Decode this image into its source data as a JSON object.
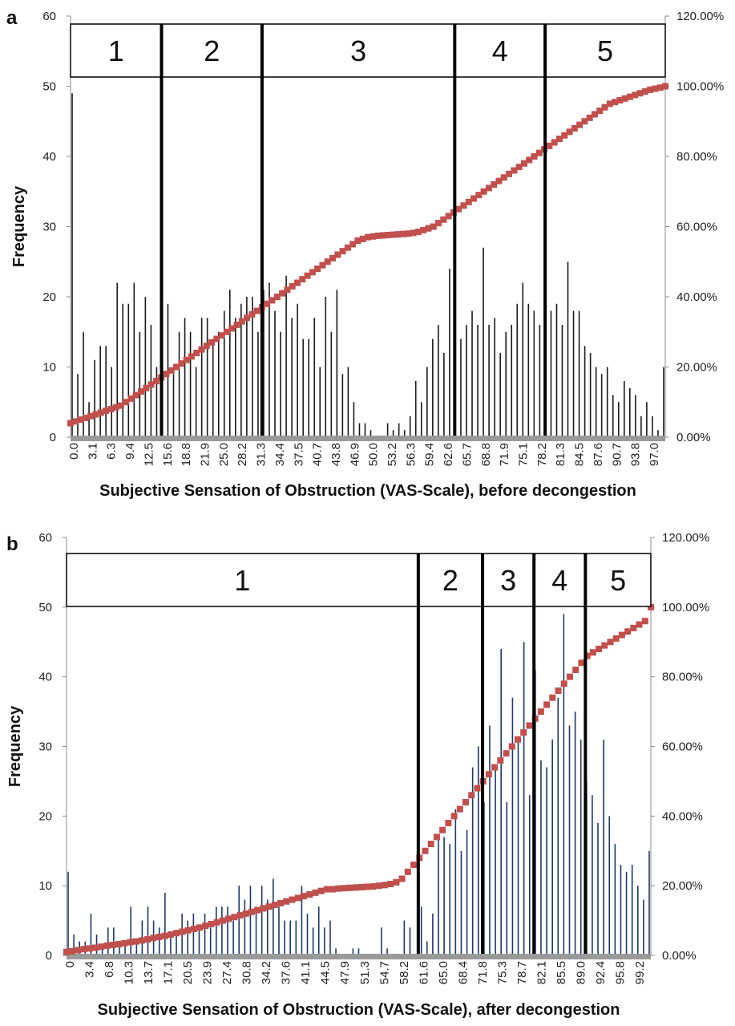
{
  "chart_data": [
    {
      "panel": "a",
      "type": "bar",
      "ylabel": "Frequency",
      "xlabel": "Subjective Sensation of Obstruction  (VAS-Scale), before decongestion",
      "ylim": [
        0,
        60
      ],
      "y_ticks": [
        "0",
        "10",
        "20",
        "30",
        "40",
        "50",
        "60"
      ],
      "y2lim": [
        0,
        1.2
      ],
      "y2_ticks": [
        "0.00%",
        "20.00%",
        "40.00%",
        "60.00%",
        "80.00%",
        "100.00%",
        "120.00%"
      ],
      "x_tick_labels": [
        "0.0",
        "3.1",
        "6.3",
        "9.4",
        "12.5",
        "15.6",
        "18.8",
        "21.9",
        "25.0",
        "28.2",
        "31.3",
        "34.4",
        "37.5",
        "40.7",
        "43.8",
        "46.9",
        "50.0",
        "53.2",
        "56.3",
        "59.4",
        "62.6",
        "65.7",
        "68.8",
        "71.9",
        "75.1",
        "78.2",
        "81.3",
        "84.5",
        "87.6",
        "90.7",
        "93.8",
        "97.0"
      ],
      "frequency_values": [
        49,
        9,
        15,
        5,
        11,
        13,
        13,
        10,
        22,
        19,
        19,
        22,
        15,
        20,
        16,
        10,
        21,
        19,
        9,
        15,
        17,
        15,
        10,
        17,
        17,
        14,
        15,
        18,
        21,
        17,
        19,
        20,
        20,
        15,
        21,
        22,
        18,
        15,
        23,
        17,
        19,
        14,
        14,
        17,
        10,
        20,
        15,
        21,
        9,
        10,
        5,
        2,
        2,
        1,
        0,
        0,
        2,
        1,
        2,
        1,
        3,
        8,
        5,
        10,
        14,
        16,
        12,
        24,
        22,
        14,
        16,
        18,
        16,
        27,
        16,
        17,
        12,
        15,
        16,
        19,
        22,
        19,
        18,
        16,
        18,
        18,
        19,
        16,
        25,
        18,
        18,
        13,
        12,
        10,
        9,
        10,
        6,
        5,
        8,
        7,
        6,
        3,
        5,
        3,
        1,
        10
      ],
      "cumulative_values": [
        0.04,
        0.045,
        0.05,
        0.055,
        0.06,
        0.065,
        0.07,
        0.075,
        0.08,
        0.085,
        0.09,
        0.1,
        0.11,
        0.12,
        0.13,
        0.14,
        0.15,
        0.16,
        0.17,
        0.18,
        0.19,
        0.2,
        0.21,
        0.22,
        0.23,
        0.24,
        0.25,
        0.26,
        0.27,
        0.28,
        0.29,
        0.3,
        0.31,
        0.32,
        0.33,
        0.34,
        0.35,
        0.36,
        0.37,
        0.38,
        0.39,
        0.4,
        0.41,
        0.42,
        0.43,
        0.44,
        0.45,
        0.46,
        0.47,
        0.48,
        0.49,
        0.5,
        0.51,
        0.52,
        0.53,
        0.54,
        0.55,
        0.56,
        0.565,
        0.57,
        0.572,
        0.574,
        0.575,
        0.576,
        0.577,
        0.578,
        0.579,
        0.58,
        0.582,
        0.585,
        0.59,
        0.595,
        0.6,
        0.61,
        0.62,
        0.63,
        0.64,
        0.65,
        0.66,
        0.67,
        0.68,
        0.69,
        0.7,
        0.71,
        0.72,
        0.73,
        0.74,
        0.75,
        0.76,
        0.77,
        0.78,
        0.79,
        0.8,
        0.81,
        0.82,
        0.83,
        0.84,
        0.85,
        0.86,
        0.87,
        0.88,
        0.89,
        0.9,
        0.91,
        0.92,
        0.93,
        0.94,
        0.95,
        0.955,
        0.96,
        0.965,
        0.97,
        0.975,
        0.98,
        0.985,
        0.99,
        0.993,
        0.996,
        1.0
      ],
      "classes": [
        {
          "label": "1",
          "from": 0,
          "to": 15.3
        },
        {
          "label": "2",
          "from": 15.3,
          "to": 32.2
        },
        {
          "label": "3",
          "from": 32.2,
          "to": 64.6
        },
        {
          "label": "4",
          "from": 64.6,
          "to": 79.8
        },
        {
          "label": "5",
          "from": 79.8,
          "to": 100
        }
      ]
    },
    {
      "panel": "b",
      "type": "bar",
      "ylabel": "Frequency",
      "xlabel": "Subjective Sensation of Obstruction  (VAS-Scale), after decongestion",
      "ylim": [
        0,
        60
      ],
      "y_ticks": [
        "0",
        "10",
        "20",
        "30",
        "40",
        "50",
        "60"
      ],
      "y2lim": [
        0,
        1.2
      ],
      "y2_ticks": [
        "0.00%",
        "20.00%",
        "40.00%",
        "60.00%",
        "80.00%",
        "100.00%",
        "120.00%"
      ],
      "x_tick_labels": [
        "0",
        "3.4",
        "6.8",
        "10.3",
        "13.7",
        "17.1",
        "20.5",
        "23.9",
        "27.4",
        "30.8",
        "34.2",
        "37.6",
        "41.1",
        "44.5",
        "47.9",
        "51.3",
        "54.7",
        "58.2",
        "61.6",
        "65.0",
        "68.4",
        "71.8",
        "75.3",
        "78.7",
        "82.1",
        "85.5",
        "89.0",
        "92.4",
        "95.8",
        "99.2"
      ],
      "frequency_values": [
        12,
        3,
        2,
        2,
        6,
        3,
        1,
        4,
        4,
        2,
        2,
        7,
        2,
        5,
        7,
        5,
        4,
        9,
        3,
        3,
        6,
        5,
        6,
        4,
        6,
        4,
        7,
        7,
        7,
        5,
        10,
        8,
        10,
        7,
        10,
        8,
        11,
        7,
        5,
        5,
        5,
        10,
        6,
        4,
        7,
        4,
        5,
        1,
        0,
        0,
        1,
        1,
        0,
        0,
        0,
        4,
        1,
        0,
        0,
        5,
        4,
        0,
        7,
        2,
        6,
        17,
        17,
        16,
        21,
        15,
        18,
        27,
        30,
        22,
        33,
        27,
        44,
        22,
        37,
        31,
        45,
        23,
        41,
        28,
        27,
        31,
        37,
        49,
        33,
        35,
        31,
        25,
        23,
        19,
        31,
        20,
        16,
        13,
        12,
        13,
        10,
        8,
        15
      ],
      "cumulative_values": [
        0.01,
        0.012,
        0.015,
        0.018,
        0.02,
        0.022,
        0.025,
        0.028,
        0.03,
        0.032,
        0.035,
        0.038,
        0.04,
        0.043,
        0.046,
        0.05,
        0.053,
        0.056,
        0.06,
        0.064,
        0.068,
        0.072,
        0.076,
        0.08,
        0.085,
        0.09,
        0.095,
        0.1,
        0.105,
        0.11,
        0.115,
        0.12,
        0.125,
        0.13,
        0.135,
        0.14,
        0.145,
        0.15,
        0.155,
        0.16,
        0.165,
        0.17,
        0.175,
        0.18,
        0.185,
        0.19,
        0.19,
        0.192,
        0.193,
        0.194,
        0.195,
        0.196,
        0.197,
        0.198,
        0.2,
        0.202,
        0.205,
        0.21,
        0.22,
        0.24,
        0.26,
        0.28,
        0.3,
        0.32,
        0.34,
        0.36,
        0.38,
        0.4,
        0.42,
        0.44,
        0.46,
        0.48,
        0.5,
        0.52,
        0.54,
        0.56,
        0.58,
        0.6,
        0.62,
        0.64,
        0.66,
        0.68,
        0.7,
        0.72,
        0.74,
        0.76,
        0.78,
        0.8,
        0.82,
        0.84,
        0.86,
        0.87,
        0.88,
        0.89,
        0.9,
        0.91,
        0.92,
        0.93,
        0.94,
        0.95,
        0.96,
        1.0
      ],
      "classes": [
        {
          "label": "1",
          "from": 0,
          "to": 60.2
        },
        {
          "label": "2",
          "from": 60.2,
          "to": 71.2
        },
        {
          "label": "3",
          "from": 71.2,
          "to": 80
        },
        {
          "label": "4",
          "from": 80,
          "to": 88.8
        },
        {
          "label": "5",
          "from": 88.8,
          "to": 100
        }
      ]
    }
  ],
  "panel_labels": [
    "a",
    "b"
  ],
  "colors": {
    "bars": "#1a1a1a",
    "bars_b": "#1f3864",
    "cumulative": "#c0504d",
    "axis_baseline": "#9a9a9a",
    "class_lines": "#000000"
  }
}
